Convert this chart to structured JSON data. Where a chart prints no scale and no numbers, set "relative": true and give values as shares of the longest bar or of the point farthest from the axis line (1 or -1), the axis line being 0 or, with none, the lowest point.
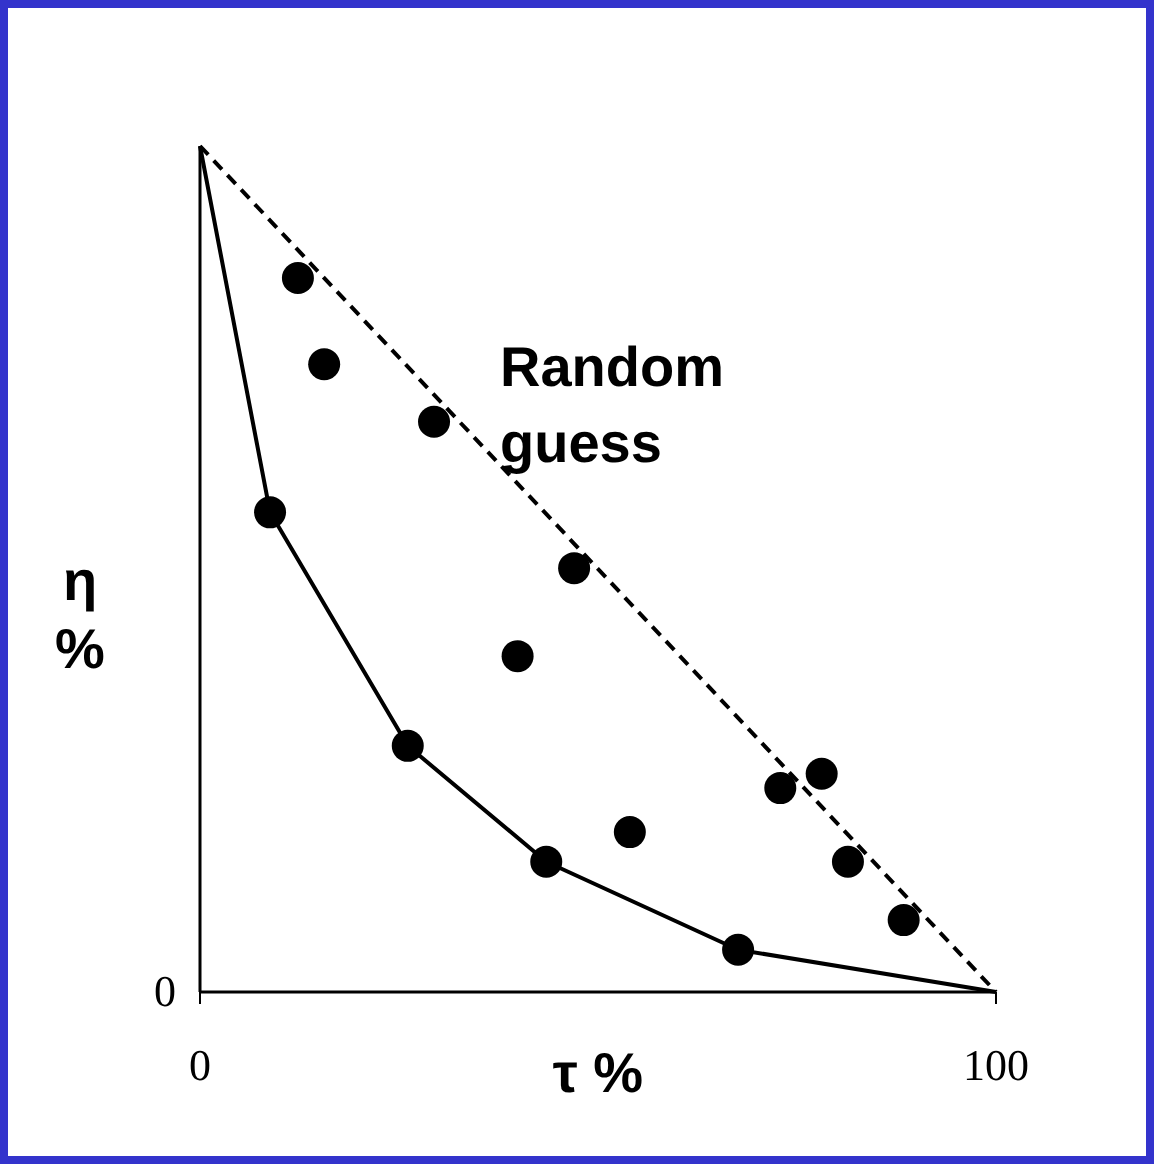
{
  "chart_data": {
    "type": "scatter",
    "xlabel": "τ %",
    "ylabel": "η %",
    "xlim": [
      0,
      100
    ],
    "xticks": [
      0,
      100
    ],
    "relative": true,
    "grid": false,
    "annotations": [
      "Random guess",
      "0"
    ],
    "series": [
      {
        "color": "#000000",
        "marker": "circle",
        "x": [
          12.3,
          15.6,
          29.4,
          8.8,
          47.0,
          39.9,
          26.1,
          43.5,
          54.0,
          67.6,
          72.9,
          78.1,
          81.4,
          88.4
        ],
        "values": [
          0.844,
          0.742,
          0.674,
          0.567,
          0.501,
          0.397,
          0.291,
          0.154,
          0.189,
          0.05,
          0.241,
          0.258,
          0.154,
          0.085
        ]
      },
      {
        "type": "line",
        "color": "#000000",
        "line_style": "solid",
        "marker": "none",
        "x": [
          0,
          8.8,
          26.1,
          43.5,
          67.6,
          100
        ],
        "values": [
          1,
          0.567,
          0.291,
          0.154,
          0.05,
          0
        ]
      },
      {
        "type": "line",
        "color": "#000000",
        "line_style": "dashed",
        "marker": "none",
        "x": [
          0,
          100
        ],
        "values": [
          1,
          0
        ]
      }
    ]
  }
}
